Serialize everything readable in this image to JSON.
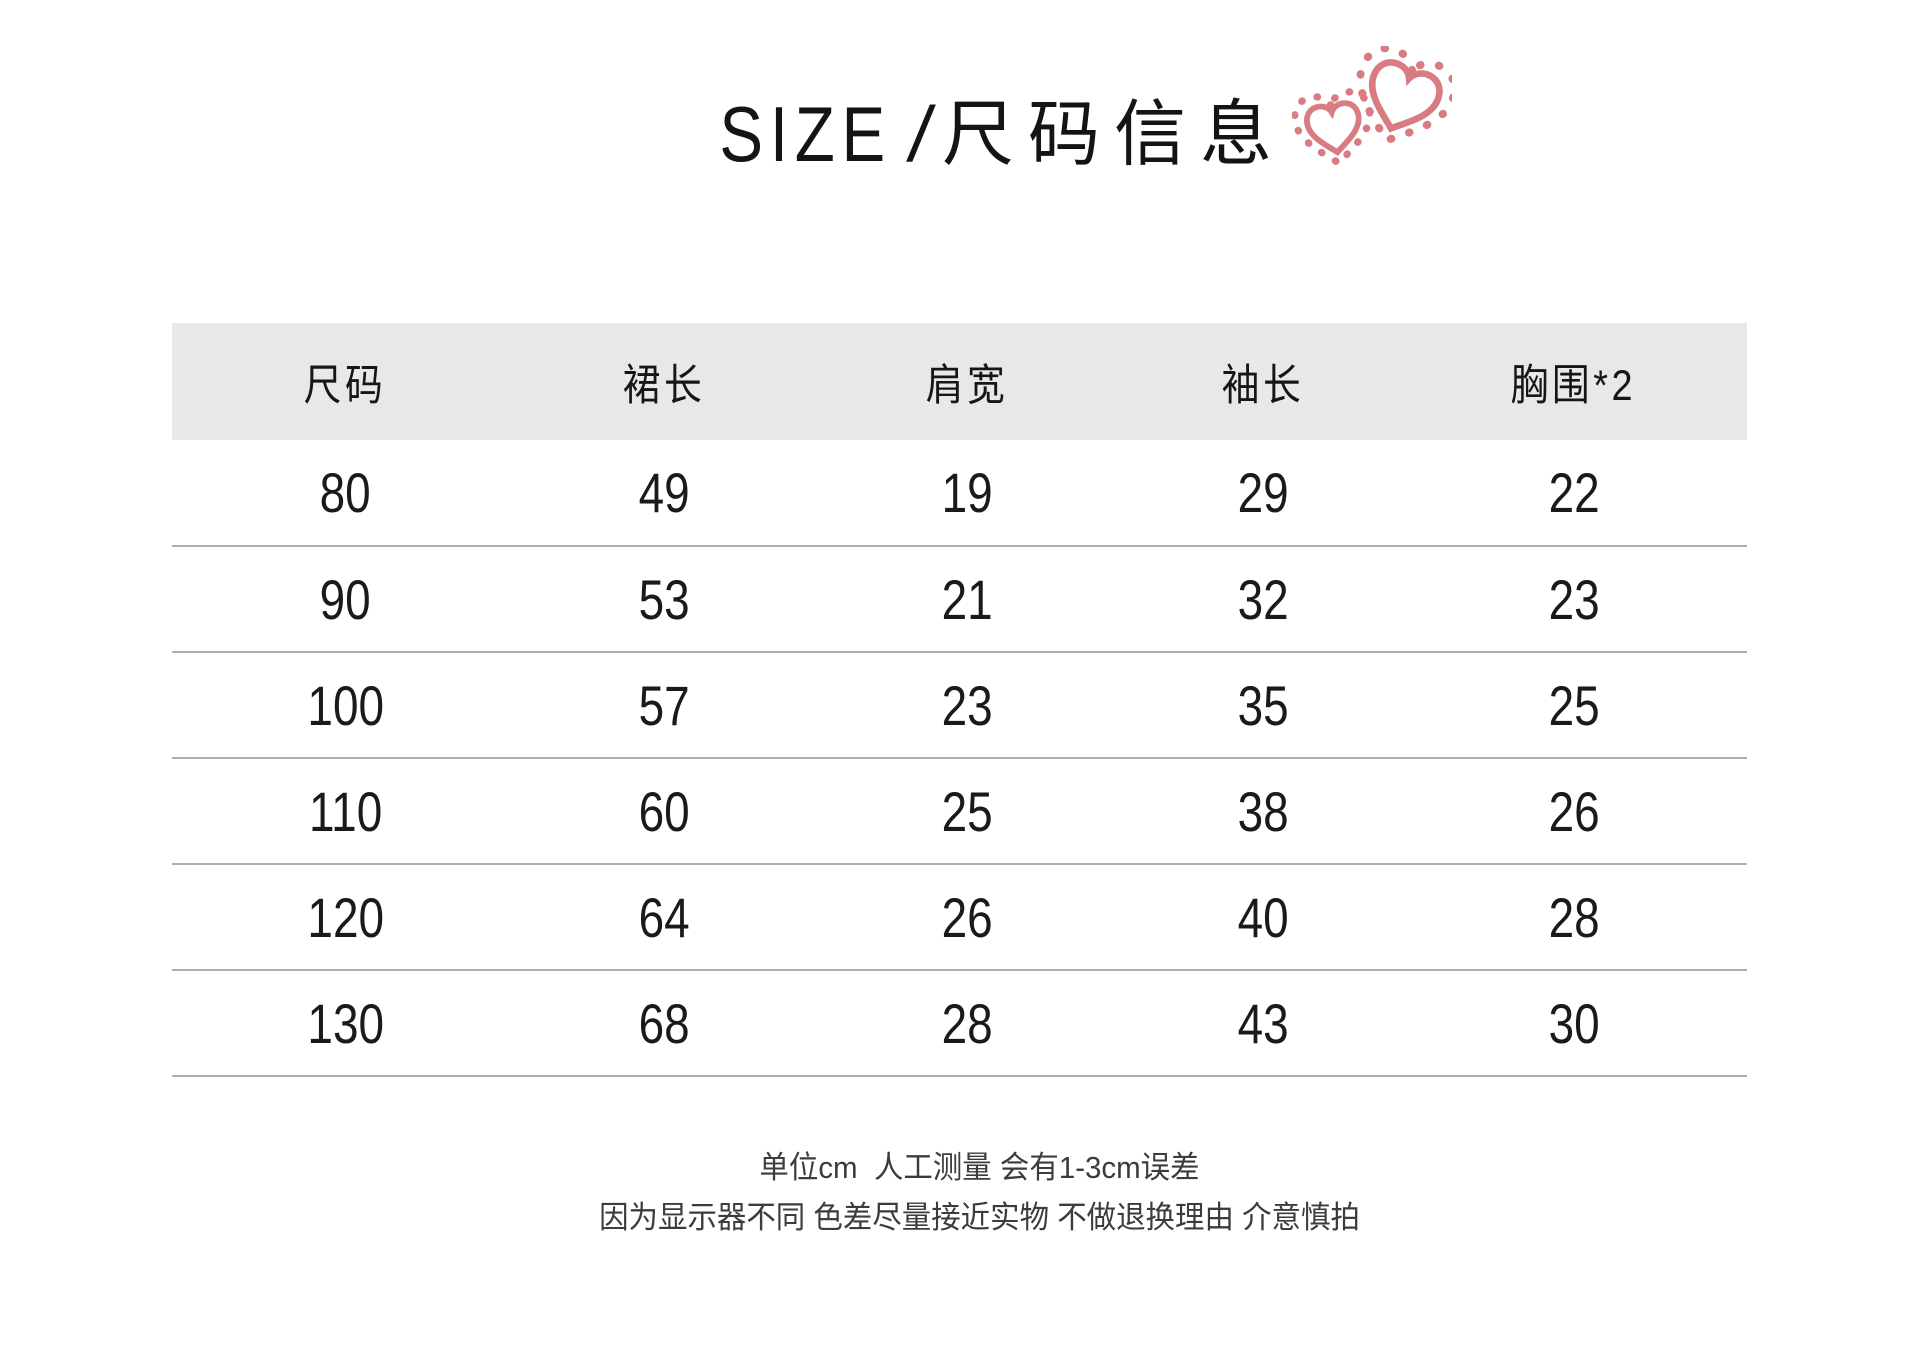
{
  "title": {
    "en": "SIZE",
    "separator": "/",
    "zh": "尺码信息"
  },
  "decorations": {
    "hearts_icon": "two hand-drawn outlined hearts with dotted halos",
    "heart_color": "#d97b82"
  },
  "colors": {
    "page_bg": "#ffffff",
    "header_bg": "#e9e8e6",
    "divider": "#b0b0b0",
    "text": "#1a1a1a"
  },
  "table": {
    "headers": [
      "尺码",
      "裙长",
      "肩宽",
      "袖长",
      "胸围*2"
    ],
    "rows": [
      [
        "80",
        "49",
        "19",
        "29",
        "22"
      ],
      [
        "90",
        "53",
        "21",
        "32",
        "23"
      ],
      [
        "100",
        "57",
        "23",
        "35",
        "25"
      ],
      [
        "110",
        "60",
        "25",
        "38",
        "26"
      ],
      [
        "120",
        "64",
        "26",
        "40",
        "28"
      ],
      [
        "130",
        "68",
        "28",
        "43",
        "30"
      ]
    ]
  },
  "footer": {
    "line1": "单位cm  人工测量 会有1-3cm误差",
    "line2": "因为显示器不同 色差尽量接近实物 不做退换理由 介意慎拍"
  }
}
